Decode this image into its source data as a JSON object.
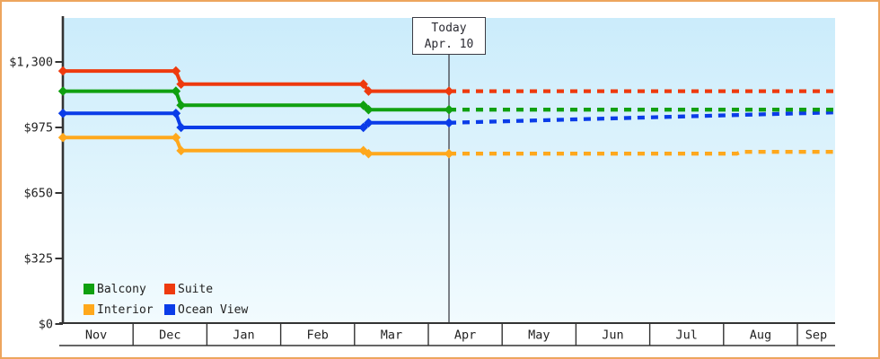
{
  "chart_data": {
    "type": "line",
    "description_visible_text_only": "",
    "colors": {
      "frame_border": "#eda55e",
      "plot_bg_top": "#cbecfb",
      "plot_bg_bottom": "#f2fbfe",
      "axis": "#333333",
      "text": "#222222",
      "today_line": "#3f3f46"
    },
    "y_axis": {
      "ylim": [
        0,
        1300
      ],
      "ticks": [
        {
          "value": 0,
          "label": "$0"
        },
        {
          "value": 325,
          "label": "$325"
        },
        {
          "value": 650,
          "label": "$650"
        },
        {
          "value": 975,
          "label": "$975"
        },
        {
          "value": 1300,
          "label": "$1,300"
        }
      ]
    },
    "x_axis": {
      "months": [
        "Nov",
        "Dec",
        "Jan",
        "Feb",
        "Mar",
        "Apr",
        "May",
        "Jun",
        "Jul",
        "Aug",
        "Sep"
      ],
      "xlim_months": [
        0,
        10.51
      ]
    },
    "today": {
      "line1": "Today",
      "line2": "Apr. 10",
      "month_position": 5.28
    },
    "projection_style": "dotted",
    "series": [
      {
        "name": "Interior",
        "color": "#ffa81c",
        "points_solid": [
          [
            0.05,
            925
          ],
          [
            1.58,
            925
          ],
          [
            1.65,
            860
          ],
          [
            4.12,
            860
          ],
          [
            4.19,
            845
          ],
          [
            5.28,
            845
          ]
        ],
        "points_projected": [
          [
            5.28,
            845
          ],
          [
            9.18,
            845
          ],
          [
            9.24,
            854
          ],
          [
            10.51,
            854
          ]
        ]
      },
      {
        "name": "Ocean View",
        "color": "#0a3ce8",
        "points_solid": [
          [
            0.05,
            1045
          ],
          [
            1.58,
            1045
          ],
          [
            1.65,
            975
          ],
          [
            4.12,
            975
          ],
          [
            4.19,
            998
          ],
          [
            5.28,
            998
          ]
        ],
        "points_projected": [
          [
            5.28,
            998
          ],
          [
            10.51,
            1050
          ]
        ]
      },
      {
        "name": "Balcony",
        "color": "#10a010",
        "points_solid": [
          [
            0.05,
            1155
          ],
          [
            1.58,
            1155
          ],
          [
            1.65,
            1085
          ],
          [
            4.12,
            1085
          ],
          [
            4.19,
            1063
          ],
          [
            5.28,
            1063
          ]
        ],
        "points_projected": [
          [
            5.28,
            1063
          ],
          [
            10.51,
            1063
          ]
        ]
      },
      {
        "name": "Suite",
        "color": "#ee3a0e",
        "points_solid": [
          [
            0.05,
            1255
          ],
          [
            1.58,
            1255
          ],
          [
            1.65,
            1190
          ],
          [
            4.12,
            1190
          ],
          [
            4.19,
            1155
          ],
          [
            5.28,
            1155
          ]
        ],
        "points_projected": [
          [
            5.28,
            1155
          ],
          [
            10.51,
            1155
          ]
        ]
      }
    ],
    "legend": {
      "items": [
        {
          "label": "Balcony",
          "color": "#10a010"
        },
        {
          "label": "Suite",
          "color": "#ee3a0e"
        },
        {
          "label": "Interior",
          "color": "#ffa81c"
        },
        {
          "label": "Ocean View",
          "color": "#0a3ce8"
        }
      ]
    }
  }
}
